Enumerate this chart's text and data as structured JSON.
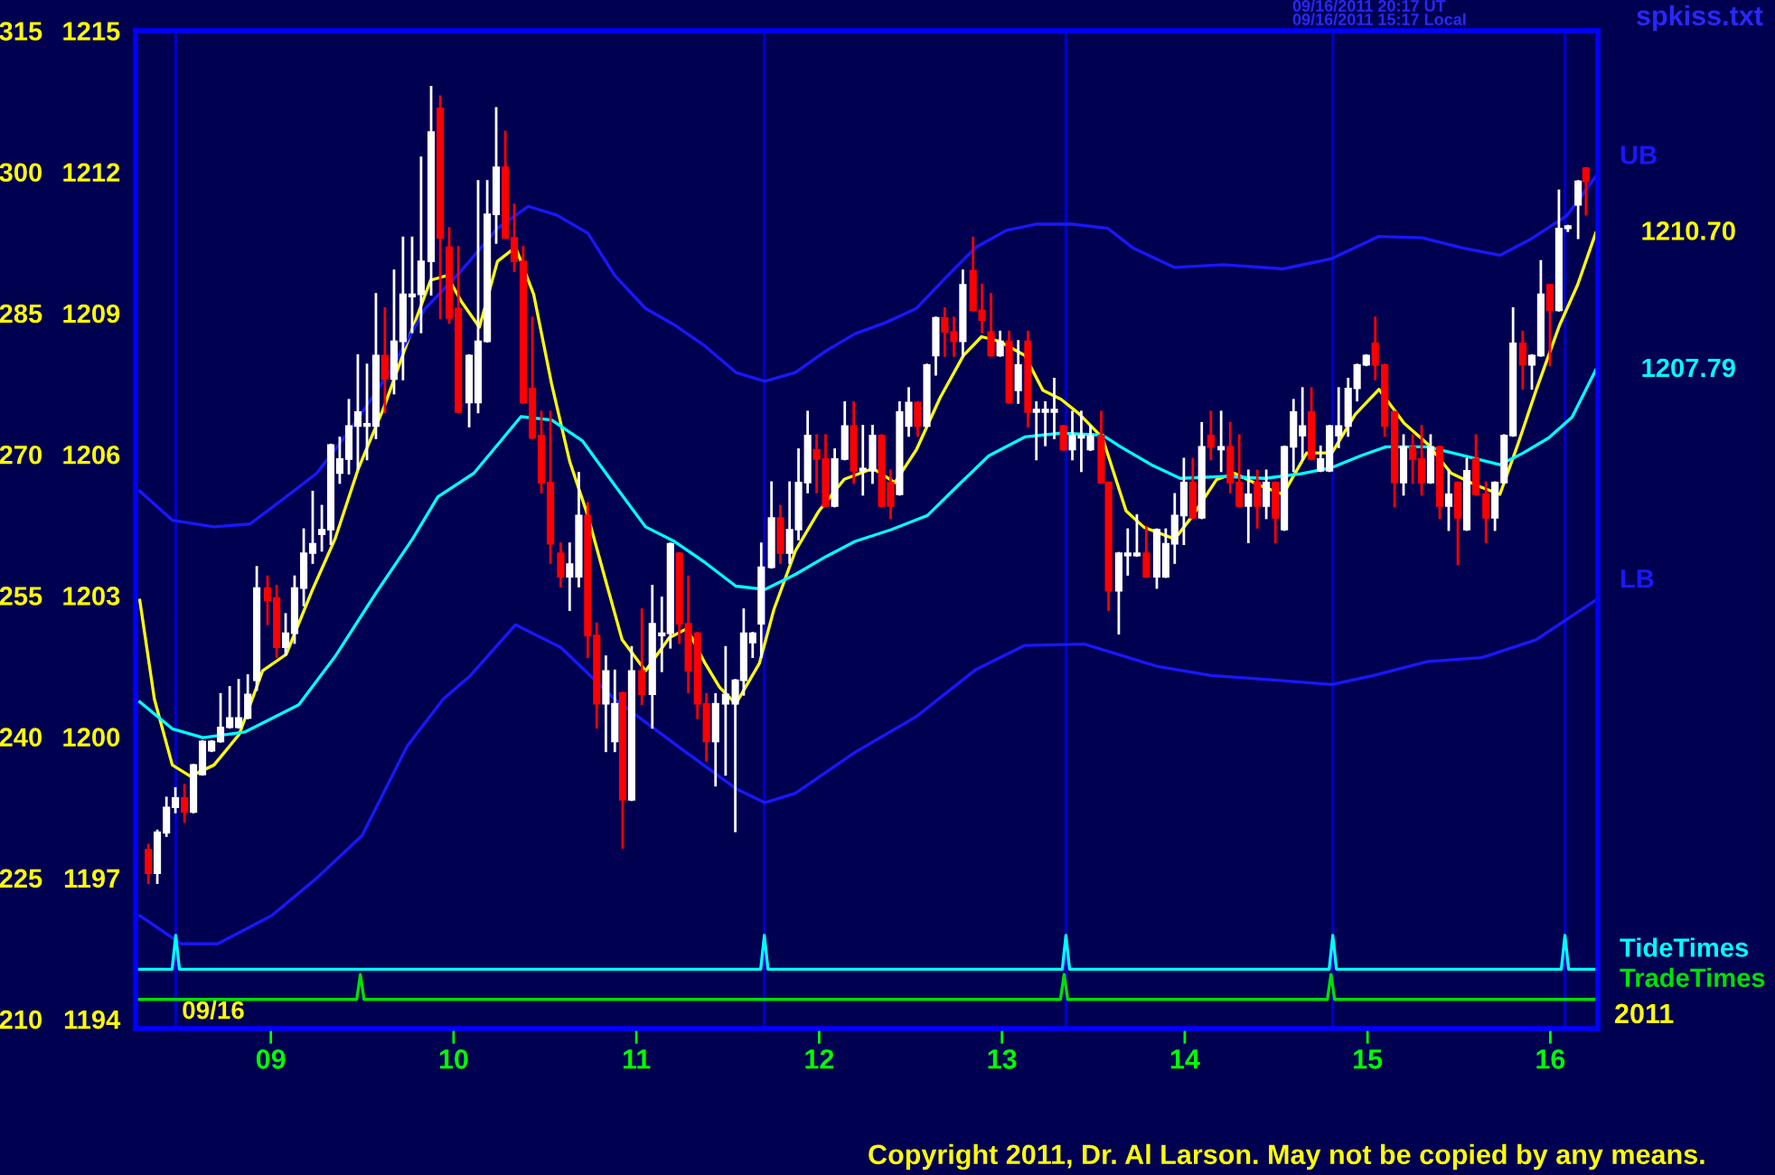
{
  "chart_data": {
    "type": "candlestick",
    "x": [
      8.33,
      8.379,
      8.429,
      8.478,
      8.528,
      8.577,
      8.626,
      8.676,
      8.725,
      8.775,
      8.824,
      8.874,
      8.923,
      8.982,
      9.032,
      9.081,
      9.13,
      9.18,
      9.229,
      9.279,
      9.328,
      9.377,
      9.427,
      9.476,
      9.526,
      9.575,
      9.624,
      9.674,
      9.723,
      9.773,
      9.822,
      9.877,
      9.927,
      9.976,
      10.026,
      10.085,
      10.134,
      10.184,
      10.233,
      10.283,
      10.332,
      10.381,
      10.431,
      10.48,
      10.53,
      10.586,
      10.635,
      10.685,
      10.734,
      10.783,
      10.833,
      10.882,
      10.925,
      10.974,
      11.03,
      11.087,
      11.139,
      11.186,
      11.235,
      11.284,
      11.334,
      11.383,
      11.433,
      11.488,
      11.541,
      11.587,
      11.636,
      11.683,
      11.739,
      11.788,
      11.838,
      11.887,
      11.937,
      11.986,
      12.035,
      12.085,
      12.14,
      12.189,
      12.239,
      12.292,
      12.342,
      12.391,
      12.44,
      12.49,
      12.539,
      12.589,
      12.638,
      12.687,
      12.737,
      12.786,
      12.842,
      12.891,
      12.94,
      12.99,
      13.039,
      13.089,
      13.142,
      13.188,
      13.237,
      13.286,
      13.336,
      13.385,
      13.434,
      13.484,
      13.543,
      13.583,
      13.639,
      13.688,
      13.738,
      13.79,
      13.847,
      13.896,
      13.945,
      13.995,
      14.044,
      14.093,
      14.143,
      14.199,
      14.249,
      14.298,
      14.348,
      14.397,
      14.446,
      14.496,
      14.545,
      14.595,
      14.644,
      14.693,
      14.743,
      14.792,
      14.842,
      14.894,
      14.943,
      14.993,
      15.042,
      15.094,
      15.148,
      15.197,
      15.247,
      15.296,
      15.345,
      15.395,
      15.444,
      15.494,
      15.543,
      15.593,
      15.648,
      15.697,
      15.747,
      15.796,
      15.849,
      15.899,
      15.948,
      15.998,
      16.047,
      16.096,
      16.152,
      16.195
    ],
    "ohlc": [
      [
        1197.6,
        1197.7,
        1196.9,
        1197.1
      ],
      [
        1197.1,
        1198.0,
        1196.9,
        1197.97
      ],
      [
        1197.96,
        1198.7,
        1197.9,
        1198.5
      ],
      [
        1198.5,
        1198.9,
        1198.4,
        1198.7
      ],
      [
        1198.7,
        1198.97,
        1198.2,
        1198.4
      ],
      [
        1198.4,
        1199.4,
        1198.4,
        1199.4
      ],
      [
        1199.2,
        1199.9,
        1199.2,
        1199.9
      ],
      [
        1199.7,
        1199.9,
        1199.7,
        1199.9
      ],
      [
        1199.9,
        1200.9,
        1199.9,
        1200.2
      ],
      [
        1200.2,
        1201.05,
        1200.2,
        1200.4
      ],
      [
        1200.2,
        1201.2,
        1200.2,
        1200.4
      ],
      [
        1200.4,
        1201.3,
        1200.4,
        1200.9
      ],
      [
        1201.2,
        1203.6,
        1201.0,
        1203.16
      ],
      [
        1203.16,
        1203.4,
        1202.4,
        1202.9
      ],
      [
        1202.95,
        1203.2,
        1201.7,
        1201.9
      ],
      [
        1201.9,
        1202.6,
        1201.75,
        1202.2
      ],
      [
        1202.2,
        1203.4,
        1202.0,
        1203.16
      ],
      [
        1203.16,
        1204.4,
        1202.8,
        1203.9
      ],
      [
        1203.9,
        1205.2,
        1203.7,
        1204.1
      ],
      [
        1204.3,
        1204.9,
        1203.96,
        1204.4
      ],
      [
        1204.4,
        1206.2,
        1204.1,
        1206.2
      ],
      [
        1205.6,
        1206.35,
        1205.4,
        1205.9
      ],
      [
        1205.9,
        1207.15,
        1205.6,
        1206.6
      ],
      [
        1206.6,
        1208.1,
        1205.7,
        1206.9
      ],
      [
        1206.6,
        1207.9,
        1205.9,
        1206.65
      ],
      [
        1206.6,
        1209.4,
        1206.35,
        1208.1
      ],
      [
        1208.1,
        1209.1,
        1206.9,
        1207.6
      ],
      [
        1207.6,
        1209.9,
        1207.3,
        1208.4
      ],
      [
        1208.4,
        1210.6,
        1207.6,
        1209.4
      ],
      [
        1209.35,
        1210.6,
        1208.6,
        1209.4
      ],
      [
        1209.4,
        1212.3,
        1208.6,
        1210.1
      ],
      [
        1210.1,
        1213.8,
        1209.4,
        1212.85
      ],
      [
        1213.35,
        1213.6,
        1208.9,
        1210.6
      ],
      [
        1210.4,
        1210.8,
        1208.8,
        1208.9
      ],
      [
        1209.1,
        1210.4,
        1206.9,
        1206.9
      ],
      [
        1207.1,
        1208.1,
        1206.6,
        1208.1
      ],
      [
        1207.1,
        1211.8,
        1206.9,
        1208.4
      ],
      [
        1208.4,
        1211.8,
        1208.4,
        1211.1
      ],
      [
        1211.1,
        1213.35,
        1210.5,
        1212.1
      ],
      [
        1212.1,
        1212.85,
        1210.6,
        1210.6
      ],
      [
        1210.6,
        1211.3,
        1209.9,
        1210.1
      ],
      [
        1210.1,
        1210.4,
        1207.1,
        1207.1
      ],
      [
        1207.4,
        1208.9,
        1206.35,
        1206.35
      ],
      [
        1206.4,
        1206.9,
        1205.2,
        1205.4
      ],
      [
        1205.4,
        1206.9,
        1203.7,
        1204.1
      ],
      [
        1203.9,
        1204.1,
        1203.2,
        1203.4
      ],
      [
        1203.4,
        1204.1,
        1202.7,
        1203.67
      ],
      [
        1203.4,
        1205.6,
        1203.2,
        1204.7
      ],
      [
        1204.7,
        1204.96,
        1201.7,
        1202.15
      ],
      [
        1202.15,
        1202.4,
        1200.2,
        1200.7
      ],
      [
        1200.7,
        1201.7,
        1199.7,
        1201.4
      ],
      [
        1199.9,
        1201.4,
        1199.7,
        1200.7
      ],
      [
        1200.93,
        1200.93,
        1197.65,
        1198.66
      ],
      [
        1198.66,
        1201.9,
        1198.66,
        1201.4
      ],
      [
        1201.4,
        1202.7,
        1200.7,
        1200.9
      ],
      [
        1200.9,
        1203.2,
        1200.2,
        1202.4
      ],
      [
        1202.15,
        1202.95,
        1201.4,
        1202.2
      ],
      [
        1202.2,
        1204.1,
        1201.9,
        1204.1
      ],
      [
        1203.9,
        1203.9,
        1202.0,
        1202.4
      ],
      [
        1202.4,
        1203.4,
        1200.95,
        1201.4
      ],
      [
        1202.2,
        1202.2,
        1200.4,
        1200.7
      ],
      [
        1200.7,
        1200.9,
        1199.5,
        1199.9
      ],
      [
        1199.9,
        1200.9,
        1198.97,
        1200.7
      ],
      [
        1200.7,
        1201.9,
        1199.2,
        1200.9
      ],
      [
        1200.7,
        1201.2,
        1198.0,
        1201.2
      ],
      [
        1201.2,
        1202.7,
        1200.9,
        1202.2
      ],
      [
        1202.0,
        1202.2,
        1201.7,
        1202.2
      ],
      [
        1202.4,
        1204.1,
        1201.7,
        1203.6
      ],
      [
        1203.6,
        1205.4,
        1203.6,
        1204.65
      ],
      [
        1204.65,
        1204.9,
        1203.7,
        1203.9
      ],
      [
        1203.9,
        1205.4,
        1203.7,
        1204.4
      ],
      [
        1204.4,
        1206.1,
        1204.2,
        1205.4
      ],
      [
        1205.4,
        1206.9,
        1205.2,
        1206.4
      ],
      [
        1206.1,
        1206.4,
        1205.2,
        1205.9
      ],
      [
        1205.9,
        1206.4,
        1204.9,
        1204.9
      ],
      [
        1204.9,
        1206.1,
        1204.9,
        1205.9
      ],
      [
        1205.9,
        1207.1,
        1205.9,
        1206.6
      ],
      [
        1206.6,
        1207.1,
        1205.4,
        1205.65
      ],
      [
        1205.65,
        1206.6,
        1205.15,
        1205.7
      ],
      [
        1205.65,
        1206.6,
        1205.4,
        1206.4
      ],
      [
        1206.4,
        1206.4,
        1204.9,
        1204.9
      ],
      [
        1205.4,
        1205.65,
        1204.65,
        1204.9
      ],
      [
        1205.15,
        1207.1,
        1205.15,
        1206.9
      ],
      [
        1206.6,
        1207.4,
        1206.4,
        1207.1
      ],
      [
        1207.1,
        1207.1,
        1206.4,
        1206.6
      ],
      [
        1206.6,
        1207.9,
        1206.6,
        1207.9
      ],
      [
        1208.1,
        1208.9,
        1207.7,
        1208.9
      ],
      [
        1208.9,
        1209.1,
        1208.1,
        1208.6
      ],
      [
        1208.6,
        1208.9,
        1208.1,
        1208.4
      ],
      [
        1208.4,
        1209.9,
        1208.1,
        1209.6
      ],
      [
        1209.9,
        1210.6,
        1209.06,
        1209.06
      ],
      [
        1209.06,
        1209.6,
        1208.6,
        1208.85
      ],
      [
        1208.6,
        1209.4,
        1208.1,
        1208.1
      ],
      [
        1208.1,
        1208.6,
        1208.1,
        1208.4
      ],
      [
        1208.4,
        1208.6,
        1207.1,
        1207.1
      ],
      [
        1207.36,
        1208.4,
        1207.1,
        1207.9
      ],
      [
        1208.4,
        1208.6,
        1206.6,
        1206.9
      ],
      [
        1206.9,
        1207.1,
        1205.9,
        1206.95
      ],
      [
        1206.9,
        1207.1,
        1206.2,
        1206.95
      ],
      [
        1206.9,
        1207.6,
        1206.35,
        1206.95
      ],
      [
        1206.6,
        1206.6,
        1206.1,
        1206.1
      ],
      [
        1206.1,
        1206.9,
        1205.9,
        1206.4
      ],
      [
        1206.35,
        1206.9,
        1205.65,
        1206.4
      ],
      [
        1206.1,
        1206.6,
        1206.1,
        1206.4
      ],
      [
        1206.4,
        1206.9,
        1205.4,
        1205.4
      ],
      [
        1205.4,
        1205.4,
        1202.7,
        1203.1
      ],
      [
        1203.1,
        1203.9,
        1202.2,
        1203.9
      ],
      [
        1203.85,
        1204.4,
        1203.45,
        1203.9
      ],
      [
        1203.85,
        1204.7,
        1203.85,
        1203.9
      ],
      [
        1203.9,
        1204.45,
        1203.4,
        1203.4
      ],
      [
        1203.4,
        1204.4,
        1203.17,
        1204.4
      ],
      [
        1203.4,
        1204.4,
        1203.4,
        1204.1
      ],
      [
        1204.1,
        1205.15,
        1203.7,
        1204.7
      ],
      [
        1204.7,
        1205.9,
        1204.1,
        1205.4
      ],
      [
        1205.4,
        1205.9,
        1204.65,
        1204.65
      ],
      [
        1204.65,
        1206.66,
        1204.65,
        1206.16
      ],
      [
        1206.4,
        1206.9,
        1205.9,
        1206.16
      ],
      [
        1206.1,
        1206.9,
        1205.65,
        1206.16
      ],
      [
        1206.16,
        1206.66,
        1205.2,
        1205.4
      ],
      [
        1205.4,
        1206.4,
        1204.9,
        1204.9
      ],
      [
        1204.9,
        1205.65,
        1204.14,
        1205.15
      ],
      [
        1205.4,
        1205.65,
        1204.45,
        1204.9
      ],
      [
        1204.9,
        1205.65,
        1204.65,
        1205.4
      ],
      [
        1205.4,
        1205.4,
        1204.14,
        1204.65
      ],
      [
        1204.4,
        1206.16,
        1204.4,
        1206.16
      ],
      [
        1206.16,
        1207.15,
        1205.65,
        1206.9
      ],
      [
        1206.4,
        1207.4,
        1205.9,
        1206.6
      ],
      [
        1206.9,
        1207.4,
        1205.9,
        1205.9
      ],
      [
        1205.65,
        1206.16,
        1205.65,
        1205.9
      ],
      [
        1205.65,
        1206.6,
        1205.65,
        1206.6
      ],
      [
        1206.4,
        1207.4,
        1206.16,
        1206.6
      ],
      [
        1206.6,
        1207.6,
        1206.4,
        1207.4
      ],
      [
        1207.4,
        1207.9,
        1207.15,
        1207.9
      ],
      [
        1207.9,
        1208.1,
        1207.9,
        1208.1
      ],
      [
        1208.36,
        1208.9,
        1207.6,
        1207.9
      ],
      [
        1207.9,
        1207.9,
        1206.4,
        1206.6
      ],
      [
        1206.9,
        1206.9,
        1204.9,
        1205.4
      ],
      [
        1205.4,
        1206.4,
        1205.15,
        1206.16
      ],
      [
        1206.16,
        1206.4,
        1205.4,
        1205.9
      ],
      [
        1205.9,
        1206.6,
        1205.15,
        1205.4
      ],
      [
        1205.4,
        1206.4,
        1205.4,
        1206.16
      ],
      [
        1206.16,
        1206.16,
        1204.65,
        1204.9
      ],
      [
        1204.9,
        1205.65,
        1204.4,
        1205.15
      ],
      [
        1205.4,
        1205.4,
        1203.67,
        1204.65
      ],
      [
        1204.4,
        1205.9,
        1204.4,
        1205.65
      ],
      [
        1205.9,
        1206.4,
        1205.15,
        1205.15
      ],
      [
        1205.15,
        1205.4,
        1204.14,
        1204.65
      ],
      [
        1204.65,
        1205.4,
        1204.4,
        1205.4
      ],
      [
        1205.4,
        1206.4,
        1205.4,
        1206.4
      ],
      [
        1206.4,
        1209.1,
        1206.4,
        1208.36
      ],
      [
        1208.36,
        1208.6,
        1207.4,
        1207.9
      ],
      [
        1207.9,
        1208.1,
        1207.4,
        1208.1
      ],
      [
        1208.1,
        1210.1,
        1208.1,
        1209.4
      ],
      [
        1209.6,
        1209.6,
        1207.9,
        1209.06
      ],
      [
        1209.06,
        1211.6,
        1209.06,
        1210.8
      ],
      [
        1210.8,
        1210.85,
        1210.75,
        1210.85
      ],
      [
        1211.3,
        1211.8,
        1210.6,
        1211.8
      ],
      [
        1212.08,
        1212.08,
        1211.1,
        1211.8
      ]
    ],
    "series": [
      {
        "type": "line",
        "color": "#ffff00",
        "x": [
          8.283,
          8.363,
          8.461,
          8.56,
          8.689,
          8.827,
          8.955,
          9.084,
          9.222,
          9.351,
          9.479,
          9.617,
          9.746,
          9.874,
          9.963,
          10.042,
          10.141,
          10.24,
          10.339,
          10.438,
          10.536,
          10.635,
          10.734,
          10.833,
          10.922,
          11.05,
          11.179,
          11.277,
          11.376,
          11.455,
          11.544,
          11.673,
          11.752,
          11.87,
          11.999,
          12.137,
          12.295,
          12.414,
          12.532,
          12.661,
          12.789,
          12.888,
          12.987,
          13.125,
          13.224,
          13.323,
          13.422,
          13.55,
          13.679,
          13.777,
          13.945,
          14.044,
          14.173,
          14.271,
          14.41,
          14.538,
          14.667,
          14.805,
          14.933,
          15.062,
          15.2,
          15.329,
          15.457,
          15.596,
          15.724,
          15.823,
          15.922,
          16.05,
          16.149,
          16.248
        ],
        "values": [
          1202.9,
          1200.8,
          1199.4,
          1199.16,
          1199.4,
          1200.05,
          1201.4,
          1201.75,
          1203.07,
          1204.2,
          1205.7,
          1206.98,
          1208.37,
          1209.7,
          1209.8,
          1209.25,
          1208.7,
          1210.1,
          1210.4,
          1209.4,
          1207.5,
          1205.85,
          1204.7,
          1203.3,
          1202.06,
          1201.4,
          1202.1,
          1202.3,
          1201.56,
          1201.05,
          1200.7,
          1201.56,
          1202.7,
          1203.95,
          1204.8,
          1205.47,
          1205.7,
          1205.4,
          1206.1,
          1207.2,
          1208.1,
          1208.5,
          1208.4,
          1208.1,
          1207.36,
          1207.17,
          1206.86,
          1206.35,
          1204.8,
          1204.45,
          1204.2,
          1204.7,
          1205.46,
          1205.6,
          1205.34,
          1205.15,
          1206.03,
          1206.03,
          1206.85,
          1207.38,
          1206.66,
          1206.22,
          1205.6,
          1205.34,
          1205.15,
          1206.22,
          1207.36,
          1208.74,
          1209.6,
          1210.7
        ]
      },
      {
        "type": "line",
        "color": "#00ffff",
        "x": [
          8.283,
          8.461,
          8.629,
          8.857,
          9.153,
          9.351,
          9.578,
          9.775,
          9.914,
          10.111,
          10.24,
          10.368,
          10.536,
          10.704,
          10.882,
          11.05,
          11.208,
          11.376,
          11.544,
          11.702,
          11.87,
          12.038,
          12.196,
          12.394,
          12.592,
          12.76,
          12.928,
          13.125,
          13.323,
          13.55,
          13.649,
          13.817,
          13.975,
          14.212,
          14.439,
          14.637,
          14.805,
          14.963,
          15.101,
          15.329,
          15.526,
          15.724,
          15.852,
          15.991,
          16.119,
          16.248
        ],
        "values": [
          1200.74,
          1200.17,
          1199.98,
          1200.1,
          1200.68,
          1201.7,
          1203.07,
          1204.2,
          1205.1,
          1205.6,
          1206.2,
          1206.8,
          1206.73,
          1206.29,
          1205.34,
          1204.46,
          1204.15,
          1203.7,
          1203.2,
          1203.13,
          1203.45,
          1203.83,
          1204.15,
          1204.4,
          1204.7,
          1205.34,
          1205.97,
          1206.37,
          1206.45,
          1206.41,
          1206.16,
          1205.78,
          1205.49,
          1205.53,
          1205.49,
          1205.59,
          1205.72,
          1205.97,
          1206.16,
          1206.16,
          1205.97,
          1205.78,
          1206.03,
          1206.35,
          1206.79,
          1207.79
        ]
      },
      {
        "type": "line",
        "name": "UB",
        "color": "#1818ff",
        "x": [
          8.283,
          8.461,
          8.689,
          8.886,
          9.084,
          9.252,
          9.449,
          9.647,
          9.845,
          10.042,
          10.24,
          10.408,
          10.566,
          10.734,
          10.882,
          11.05,
          11.208,
          11.376,
          11.544,
          11.702,
          11.87,
          12.038,
          12.196,
          12.364,
          12.532,
          12.691,
          12.858,
          13.026,
          13.185,
          13.382,
          13.58,
          13.718,
          13.945,
          14.212,
          14.538,
          14.805,
          15.062,
          15.299,
          15.526,
          15.724,
          15.892,
          16.09,
          16.248
        ],
        "values": [
          1205.22,
          1204.6,
          1204.46,
          1204.52,
          1205.1,
          1205.6,
          1206.6,
          1207.74,
          1209.1,
          1209.9,
          1210.8,
          1211.27,
          1211.08,
          1210.7,
          1209.8,
          1209.1,
          1208.75,
          1208.3,
          1207.74,
          1207.55,
          1207.74,
          1208.2,
          1208.56,
          1208.8,
          1209.1,
          1209.75,
          1210.4,
          1210.76,
          1210.89,
          1210.89,
          1210.8,
          1210.38,
          1209.97,
          1210.03,
          1209.94,
          1210.16,
          1210.63,
          1210.6,
          1210.38,
          1210.23,
          1210.57,
          1211.07,
          1211.9
        ]
      },
      {
        "type": "line",
        "name": "LB",
        "color": "#1818ff",
        "x": [
          8.283,
          8.511,
          8.708,
          9.005,
          9.252,
          9.499,
          9.746,
          9.943,
          10.092,
          10.339,
          10.586,
          10.882,
          11.208,
          11.544,
          11.702,
          11.87,
          12.196,
          12.532,
          12.858,
          13.125,
          13.451,
          13.846,
          14.143,
          14.439,
          14.805,
          15.032,
          15.329,
          15.625,
          15.922,
          16.248
        ],
        "values": [
          1196.2,
          1195.6,
          1195.6,
          1196.2,
          1197.0,
          1197.9,
          1199.8,
          1200.8,
          1201.3,
          1202.38,
          1201.9,
          1200.8,
          1199.85,
          1198.9,
          1198.6,
          1198.8,
          1199.67,
          1200.43,
          1201.43,
          1201.94,
          1201.97,
          1201.5,
          1201.3,
          1201.22,
          1201.11,
          1201.3,
          1201.6,
          1201.68,
          1202.06,
          1202.9
        ]
      },
      {
        "type": "line",
        "name": "TideTimes",
        "color": "#00ffff",
        "x": [
          8.27,
          8.46,
          8.48,
          8.5,
          11.68,
          11.7,
          11.72,
          13.33,
          13.35,
          13.37,
          14.79,
          14.81,
          14.83,
          16.06,
          16.08,
          16.1,
          16.25
        ],
        "values": [
          1195.06,
          1195.06,
          1195.78,
          1195.06,
          1195.06,
          1195.78,
          1195.06,
          1195.06,
          1195.78,
          1195.06,
          1195.06,
          1195.78,
          1195.06,
          1195.06,
          1195.78,
          1195.06,
          1195.06
        ]
      },
      {
        "type": "line",
        "name": "TradeTimes",
        "color": "#00e000",
        "x": [
          8.27,
          9.47,
          9.49,
          9.51,
          13.32,
          13.34,
          13.36,
          14.78,
          14.8,
          14.82,
          16.25
        ],
        "values": [
          1194.42,
          1194.42,
          1194.95,
          1194.42,
          1194.42,
          1194.95,
          1194.42,
          1194.42,
          1194.95,
          1194.42,
          1194.42
        ]
      }
    ],
    "ref_lines": [
      {
        "axis": "x",
        "value": 8.48,
        "color": "#0000c8"
      },
      {
        "axis": "x",
        "value": 11.7,
        "color": "#0000c8"
      },
      {
        "axis": "x",
        "value": 13.35,
        "color": "#0000c8"
      },
      {
        "axis": "x",
        "value": 14.81,
        "color": "#0000c8"
      },
      {
        "axis": "x",
        "value": 16.08,
        "color": "#0000c8"
      }
    ],
    "xlim": [
      8.26,
      16.26
    ],
    "xticks": [
      {
        "value": 9,
        "label": "09"
      },
      {
        "value": 10,
        "label": "10"
      },
      {
        "value": 11,
        "label": "11"
      },
      {
        "value": 12,
        "label": "12"
      },
      {
        "value": 13,
        "label": "13"
      },
      {
        "value": 14,
        "label": "14"
      },
      {
        "value": 15,
        "label": "15"
      },
      {
        "value": 16,
        "label": "16"
      }
    ],
    "ylim": [
      1193.8,
      1215
    ],
    "yticks": [
      1194,
      1197,
      1200,
      1203,
      1206,
      1209,
      1212,
      1215
    ],
    "y2lim": [
      209,
      315
    ],
    "y2ticks": [
      210,
      225,
      240,
      255,
      270,
      285,
      300,
      315
    ],
    "annotations": [
      {
        "text": "1210.70",
        "x": 16.248,
        "y": 1210.7
      },
      {
        "text": "1207.79",
        "x": 16.248,
        "y": 1207.79
      },
      "09/16",
      "2011",
      "09/16/2011 20:17 UT",
      "09/16/2011 15:17 Local",
      "spkiss.txt",
      "Copyright 2011, Dr. Al Larson. May not be copied by any means."
    ]
  }
}
